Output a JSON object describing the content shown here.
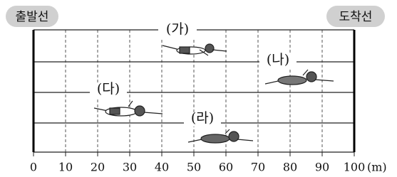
{
  "start_label": "출발선",
  "finish_label": "도착선",
  "lanes": [
    {
      "label": "(가)"
    },
    {
      "label": "(나)"
    },
    {
      "label": "(다)"
    },
    {
      "label": "(라)"
    }
  ],
  "axis": {
    "ticks": [
      0,
      10,
      20,
      30,
      40,
      50,
      60,
      70,
      80,
      90,
      100
    ],
    "unit": "(m)",
    "lim": [
      0,
      100
    ]
  }
}
